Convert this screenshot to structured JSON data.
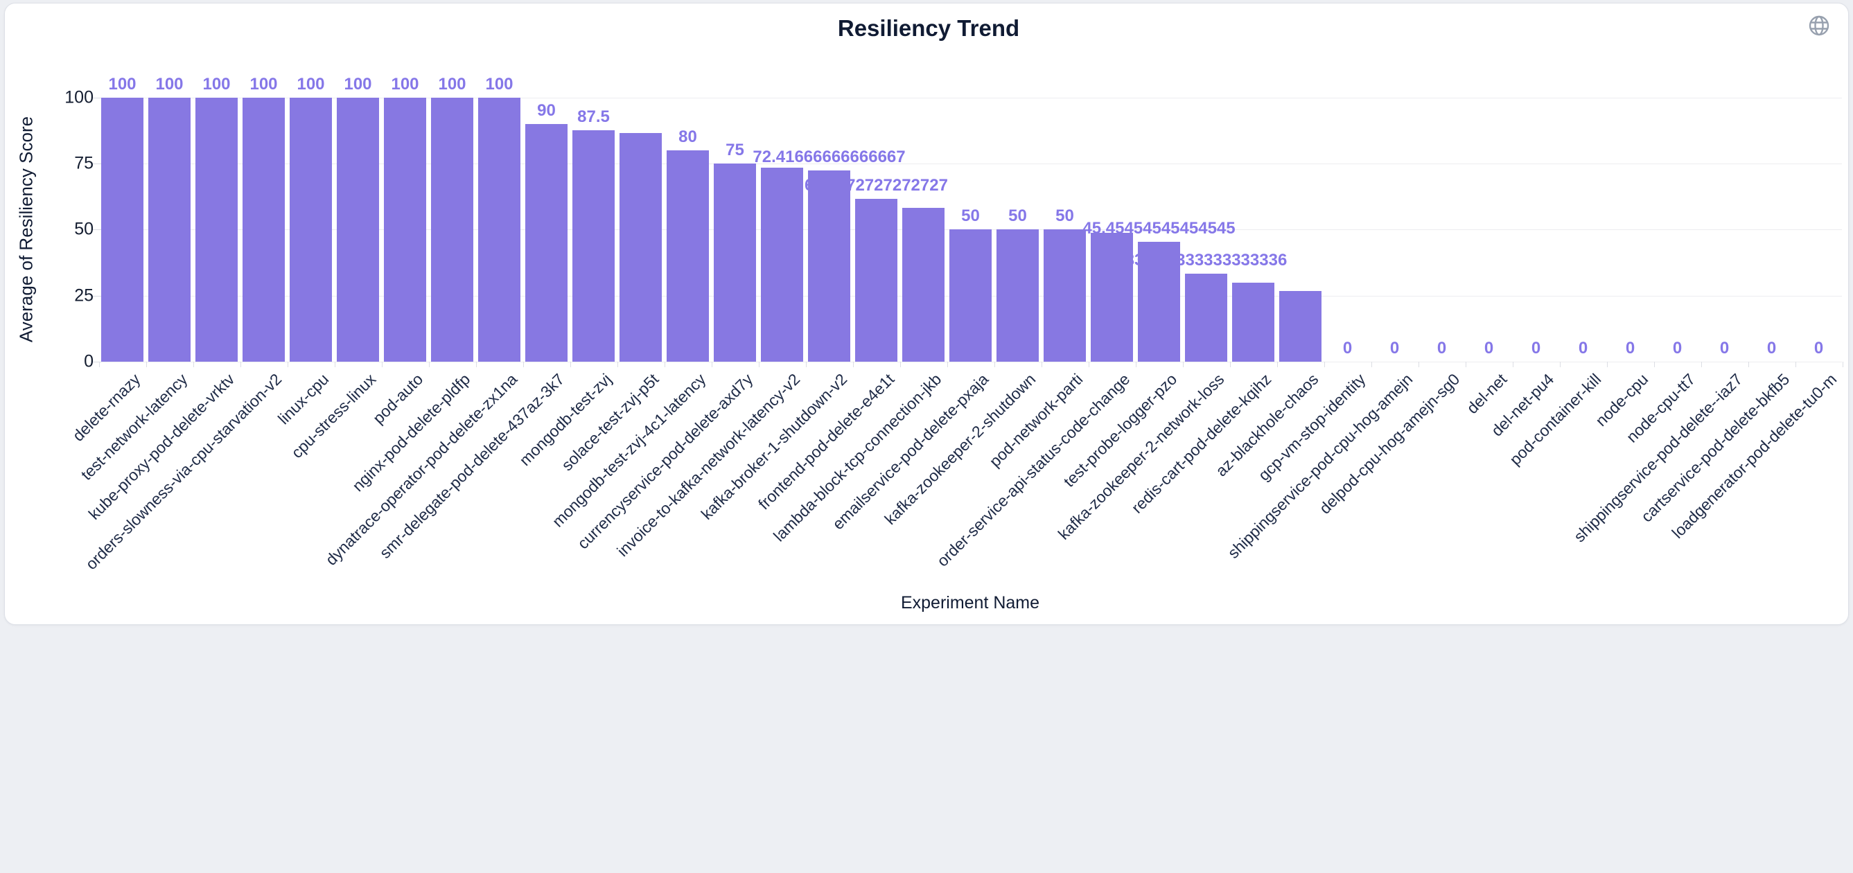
{
  "chart_data": {
    "type": "bar",
    "title": "Resiliency Trend",
    "xlabel": "Experiment Name",
    "ylabel": "Average of Resiliency Score",
    "ylim": [
      0,
      100
    ],
    "yticks": [
      0,
      25,
      50,
      75,
      100
    ],
    "grid": true,
    "legend": false,
    "bar_color": "#8778e2",
    "value_label_color": "#8577e8",
    "categories": [
      "delete-rnazy",
      "test-network-latency",
      "kube-proxy-pod-delete-vrktv",
      "orders-slowness-via-cpu-starvation-v2",
      "linux-cpu",
      "cpu-stress-linux",
      "pod-auto",
      "nginx-pod-delete-pldfp",
      "dynatrace-operator-pod-delete-zx1na",
      "smr-delegate-pod-delete-437az-3k7",
      "mongodb-test-zvj",
      "solace-test-zvj-p5t",
      "mongodb-test-zvj-4c1-latency",
      "currencyservice-pod-delete-axd7y",
      "invoice-to-kafka-network-latency-v2",
      "kafka-broker-1-shutdown-v2",
      "frontend-pod-delete-e4e1t",
      "lambda-block-tcp-connection-jkb",
      "emailservice-pod-delete-pxaja",
      "kafka-zookeeper-2-shutdown",
      "pod-network-parti",
      "order-service-api-status-code-change",
      "test-probe-logger-pzo",
      "kafka-zookeeper-2-network-loss",
      "redis-cart-pod-delete-kqihz",
      "az-blackhole-chaos",
      "gcp-vm-stop-identity",
      "shippingservice-pod-cpu-hog-amejn",
      "delpod-cpu-hog-amejn-sg0",
      "del-net",
      "del-net-pu4",
      "pod-container-kill",
      "node-cpu",
      "node-cpu-tt7",
      "shippingservice-pod-delete--iaz7",
      "cartservice-pod-delete-bkfb5",
      "loadgenerator-pod-delete-tu0-m"
    ],
    "values": [
      100,
      100,
      100,
      100,
      100,
      100,
      100,
      100,
      100,
      90,
      87.5,
      86.66666666666667,
      80,
      75,
      73.33333333333333,
      72.41666666666667,
      61.7272727272727,
      58.333333333333336,
      50,
      50,
      50,
      48.75,
      45.45454545454545,
      33.333333333333336,
      30,
      26.666666666666668,
      0,
      0,
      0,
      0,
      0,
      0,
      0,
      0,
      0,
      0,
      0
    ],
    "data_labels": [
      "100",
      "100",
      "100",
      "100",
      "100",
      "100",
      "100",
      "100",
      "100",
      "90",
      "87.5",
      null,
      "80",
      "75",
      null,
      "72.41666666666667",
      "61.7272727272727",
      null,
      "50",
      "50",
      "50",
      null,
      "45.45454545454545",
      "33.333333333333336",
      null,
      null,
      "0",
      "0",
      "0",
      "0",
      "0",
      "0",
      "0",
      "0",
      "0",
      "0",
      "0"
    ]
  },
  "icons": {
    "globe": "globe-icon"
  }
}
